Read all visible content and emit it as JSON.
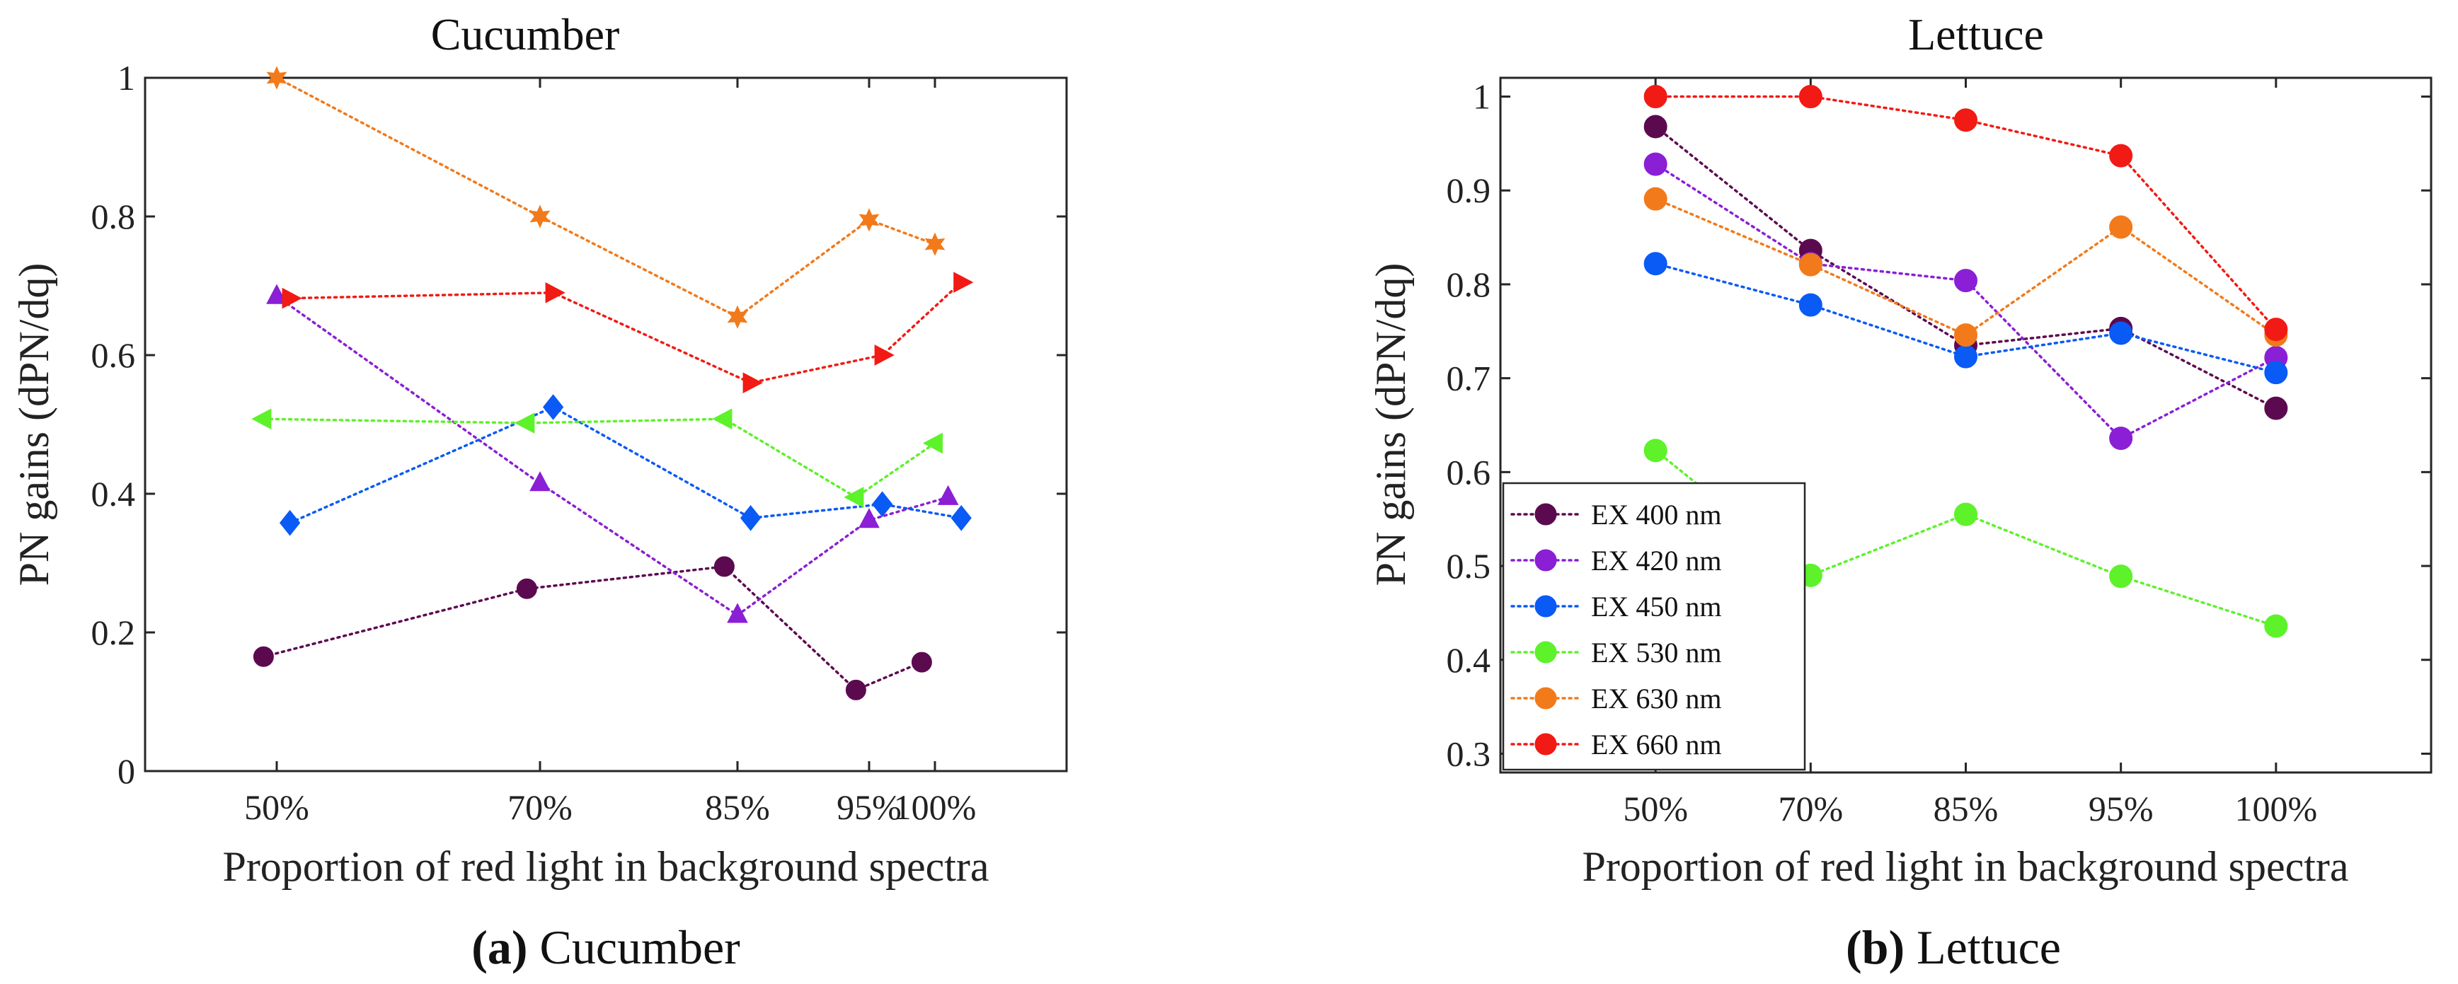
{
  "chart_data": [
    {
      "type": "line",
      "title": "Cucumber",
      "caption_prefix": "(a)",
      "caption_text": " Cucumber",
      "xlabel": "Proportion of red light in background spectra",
      "ylabel": "PN gains (dPN/dq)",
      "ylim": [
        0,
        1
      ],
      "yticks": [
        0,
        0.2,
        0.4,
        0.6,
        0.8,
        1
      ],
      "ytick_labels": [
        "0",
        "0.2",
        "0.4",
        "0.6",
        "0.8",
        "1"
      ],
      "xlim": [
        40,
        110
      ],
      "xticks": [
        50,
        70,
        85,
        95,
        100
      ],
      "xtick_labels": [
        "50%",
        "70%",
        "85%",
        "95%",
        "100%"
      ],
      "grid": false,
      "legend": null,
      "series": [
        {
          "name": "EX 400 nm",
          "color": "#5c0a50",
          "marker": "circle",
          "x": [
            49,
            69,
            84,
            94,
            99
          ],
          "values": [
            0.165,
            0.263,
            0.295,
            0.117,
            0.157
          ]
        },
        {
          "name": "EX 420 nm",
          "color": "#8a1fd6",
          "marker": "triangle-up",
          "x": [
            50,
            70,
            85,
            95,
            101
          ],
          "values": [
            0.685,
            0.415,
            0.225,
            0.362,
            0.395
          ]
        },
        {
          "name": "EX 450 nm",
          "color": "#0a5af5",
          "marker": "diamond",
          "x": [
            51,
            71,
            86,
            96,
            102
          ],
          "values": [
            0.358,
            0.525,
            0.365,
            0.385,
            0.365
          ]
        },
        {
          "name": "EX 530 nm",
          "color": "#5df22a",
          "marker": "triangle-left",
          "x": [
            49,
            69,
            84,
            94,
            100
          ],
          "values": [
            0.508,
            0.502,
            0.508,
            0.395,
            0.473
          ]
        },
        {
          "name": "EX 630 nm",
          "color": "#f27a1a",
          "marker": "hexagram",
          "x": [
            50,
            70,
            85,
            95,
            100
          ],
          "values": [
            1.0,
            0.8,
            0.655,
            0.795,
            0.76
          ]
        },
        {
          "name": "EX 660 nm",
          "color": "#f21a14",
          "marker": "triangle-right",
          "x": [
            51,
            71,
            86,
            96,
            102
          ],
          "values": [
            0.682,
            0.69,
            0.56,
            0.6,
            0.705
          ]
        }
      ]
    },
    {
      "type": "line",
      "title": "Lettuce",
      "caption_prefix": "(b)",
      "caption_text": " Lettuce",
      "xlabel": "Proportion of red light in background spectra",
      "ylabel": "PN gains (dPN/dq)",
      "ylim": [
        0.28,
        1.02
      ],
      "yticks": [
        0.3,
        0.4,
        0.5,
        0.6,
        0.7,
        0.8,
        0.9,
        1
      ],
      "ytick_labels": [
        "0.3",
        "0.4",
        "0.5",
        "0.6",
        "0.7",
        "0.8",
        "0.9",
        "1"
      ],
      "xlim": [
        0,
        6
      ],
      "xticks": [
        1,
        2,
        3,
        4,
        5
      ],
      "xtick_labels": [
        "50%",
        "70%",
        "85%",
        "95%",
        "100%"
      ],
      "grid": false,
      "legend": "bottom-left",
      "series": [
        {
          "name": "EX 400 nm",
          "color": "#5c0a50",
          "marker": "circle",
          "x": [
            1,
            2,
            3,
            4,
            5
          ],
          "values": [
            0.968,
            0.836,
            0.735,
            0.753,
            0.668
          ]
        },
        {
          "name": "EX 420 nm",
          "color": "#8a1fd6",
          "marker": "circle",
          "x": [
            1,
            2,
            3,
            4,
            5
          ],
          "values": [
            0.928,
            0.822,
            0.804,
            0.636,
            0.722
          ]
        },
        {
          "name": "EX 450 nm",
          "color": "#0a5af5",
          "marker": "circle",
          "x": [
            1,
            2,
            3,
            4,
            5
          ],
          "values": [
            0.822,
            0.778,
            0.723,
            0.748,
            0.706
          ]
        },
        {
          "name": "EX 530 nm",
          "color": "#5df22a",
          "marker": "circle",
          "x": [
            1,
            2,
            3,
            4,
            5
          ],
          "values": [
            0.623,
            0.49,
            0.555,
            0.489,
            0.436
          ]
        },
        {
          "name": "EX 630 nm",
          "color": "#f27a1a",
          "marker": "circle",
          "x": [
            1,
            2,
            3,
            4,
            5
          ],
          "values": [
            0.891,
            0.821,
            0.746,
            0.861,
            0.746
          ]
        },
        {
          "name": "EX 660 nm",
          "color": "#f21a14",
          "marker": "circle",
          "x": [
            1,
            2,
            3,
            4,
            5
          ],
          "values": [
            1.0,
            1.0,
            0.975,
            0.937,
            0.752
          ]
        }
      ]
    }
  ]
}
